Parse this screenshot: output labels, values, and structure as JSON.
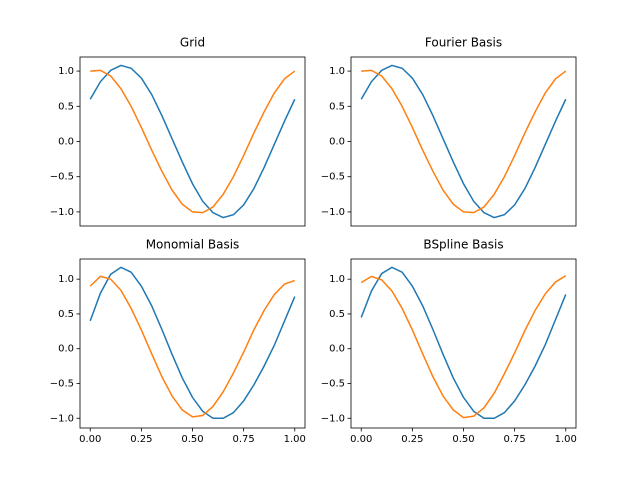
{
  "chart_data": [
    {
      "type": "line",
      "title": "Grid",
      "x": [
        0,
        0.05,
        0.1,
        0.15,
        0.2,
        0.25,
        0.3,
        0.35,
        0.4,
        0.45,
        0.5,
        0.55,
        0.6,
        0.65,
        0.7,
        0.75,
        0.8,
        0.85,
        0.9,
        0.95,
        1
      ],
      "series": [
        {
          "color": "#1f77b4",
          "values": [
            0.6,
            0.85,
            1.01,
            1.08,
            1.04,
            0.9,
            0.67,
            0.37,
            0.04,
            -0.29,
            -0.6,
            -0.85,
            -1.01,
            -1.08,
            -1.04,
            -0.9,
            -0.67,
            -0.37,
            -0.04,
            0.29,
            0.6
          ]
        },
        {
          "color": "#ff7f0e",
          "values": [
            1.0,
            1.01,
            0.93,
            0.75,
            0.5,
            0.2,
            -0.12,
            -0.42,
            -0.69,
            -0.89,
            -1.0,
            -1.01,
            -0.93,
            -0.75,
            -0.5,
            -0.2,
            0.12,
            0.42,
            0.69,
            0.89,
            1.0
          ]
        }
      ],
      "xlim": [
        -0.05,
        1.05
      ],
      "ylim": [
        -1.2,
        1.2
      ],
      "yticks": [
        {
          "value": -1,
          "label": "−1.0"
        },
        {
          "value": -0.5,
          "label": "−0.5"
        },
        {
          "value": 0,
          "label": "0.0"
        },
        {
          "value": 0.5,
          "label": "0.5"
        },
        {
          "value": 1,
          "label": "1.0"
        }
      ]
    },
    {
      "type": "line",
      "title": "Fourier Basis",
      "x": [
        0,
        0.05,
        0.1,
        0.15,
        0.2,
        0.25,
        0.3,
        0.35,
        0.4,
        0.45,
        0.5,
        0.55,
        0.6,
        0.65,
        0.7,
        0.75,
        0.8,
        0.85,
        0.9,
        0.95,
        1
      ],
      "series": [
        {
          "color": "#1f77b4",
          "values": [
            0.6,
            0.85,
            1.01,
            1.08,
            1.04,
            0.9,
            0.67,
            0.37,
            0.04,
            -0.29,
            -0.6,
            -0.85,
            -1.01,
            -1.08,
            -1.04,
            -0.9,
            -0.67,
            -0.37,
            -0.04,
            0.29,
            0.6
          ]
        },
        {
          "color": "#ff7f0e",
          "values": [
            1.0,
            1.01,
            0.93,
            0.75,
            0.5,
            0.2,
            -0.12,
            -0.42,
            -0.69,
            -0.89,
            -1.0,
            -1.01,
            -0.93,
            -0.75,
            -0.5,
            -0.2,
            0.12,
            0.42,
            0.69,
            0.89,
            1.0
          ]
        }
      ],
      "xlim": [
        -0.05,
        1.05
      ],
      "ylim": [
        -1.2,
        1.2
      ],
      "yticks": [
        {
          "value": -1,
          "label": "−1.0"
        },
        {
          "value": -0.5,
          "label": "−0.5"
        },
        {
          "value": 0,
          "label": "0.0"
        },
        {
          "value": 0.5,
          "label": "0.5"
        },
        {
          "value": 1,
          "label": "1.0"
        }
      ]
    },
    {
      "type": "line",
      "title": "Monomial Basis",
      "x": [
        0,
        0.05,
        0.1,
        0.15,
        0.2,
        0.25,
        0.3,
        0.35,
        0.4,
        0.45,
        0.5,
        0.55,
        0.6,
        0.65,
        0.7,
        0.75,
        0.8,
        0.85,
        0.9,
        0.95,
        1
      ],
      "series": [
        {
          "color": "#1f77b4",
          "values": [
            0.4,
            0.8,
            1.07,
            1.17,
            1.1,
            0.9,
            0.62,
            0.28,
            -0.08,
            -0.42,
            -0.7,
            -0.9,
            -1.0,
            -1.0,
            -0.92,
            -0.75,
            -0.52,
            -0.25,
            0.05,
            0.4,
            0.75
          ]
        },
        {
          "color": "#ff7f0e",
          "values": [
            0.9,
            1.04,
            1.0,
            0.84,
            0.58,
            0.27,
            -0.07,
            -0.4,
            -0.68,
            -0.88,
            -0.98,
            -0.96,
            -0.83,
            -0.62,
            -0.35,
            -0.05,
            0.27,
            0.55,
            0.78,
            0.93,
            0.98
          ]
        }
      ],
      "xlim": [
        -0.05,
        1.05
      ],
      "ylim": [
        -1.14,
        1.29
      ],
      "xticks": [
        {
          "value": 0,
          "label": "0.00"
        },
        {
          "value": 0.25,
          "label": "0.25"
        },
        {
          "value": 0.5,
          "label": "0.50"
        },
        {
          "value": 0.75,
          "label": "0.75"
        },
        {
          "value": 1,
          "label": "1.00"
        }
      ],
      "yticks": [
        {
          "value": -1,
          "label": "−1.0"
        },
        {
          "value": -0.5,
          "label": "−0.5"
        },
        {
          "value": 0,
          "label": "0.0"
        },
        {
          "value": 0.5,
          "label": "0.5"
        },
        {
          "value": 1,
          "label": "1.0"
        }
      ]
    },
    {
      "type": "line",
      "title": "BSpline Basis",
      "x": [
        0,
        0.05,
        0.1,
        0.15,
        0.2,
        0.25,
        0.3,
        0.35,
        0.4,
        0.45,
        0.5,
        0.55,
        0.6,
        0.65,
        0.7,
        0.75,
        0.8,
        0.85,
        0.9,
        0.95,
        1
      ],
      "series": [
        {
          "color": "#1f77b4",
          "values": [
            0.45,
            0.83,
            1.08,
            1.17,
            1.1,
            0.9,
            0.62,
            0.28,
            -0.08,
            -0.42,
            -0.7,
            -0.9,
            -1.0,
            -1.0,
            -0.92,
            -0.75,
            -0.52,
            -0.25,
            0.06,
            0.42,
            0.78
          ]
        },
        {
          "color": "#ff7f0e",
          "values": [
            0.95,
            1.04,
            0.99,
            0.83,
            0.58,
            0.27,
            -0.07,
            -0.4,
            -0.68,
            -0.88,
            -0.99,
            -0.97,
            -0.85,
            -0.64,
            -0.36,
            -0.06,
            0.26,
            0.55,
            0.79,
            0.96,
            1.05
          ]
        }
      ],
      "xlim": [
        -0.05,
        1.05
      ],
      "ylim": [
        -1.14,
        1.29
      ],
      "xticks": [
        {
          "value": 0,
          "label": "0.00"
        },
        {
          "value": 0.25,
          "label": "0.25"
        },
        {
          "value": 0.5,
          "label": "0.50"
        },
        {
          "value": 0.75,
          "label": "0.75"
        },
        {
          "value": 1,
          "label": "1.00"
        }
      ],
      "yticks": [
        {
          "value": -1,
          "label": "−1.0"
        },
        {
          "value": -0.5,
          "label": "−0.5"
        },
        {
          "value": 0,
          "label": "0.0"
        },
        {
          "value": 0.5,
          "label": "0.5"
        },
        {
          "value": 1,
          "label": "1.0"
        }
      ]
    }
  ]
}
